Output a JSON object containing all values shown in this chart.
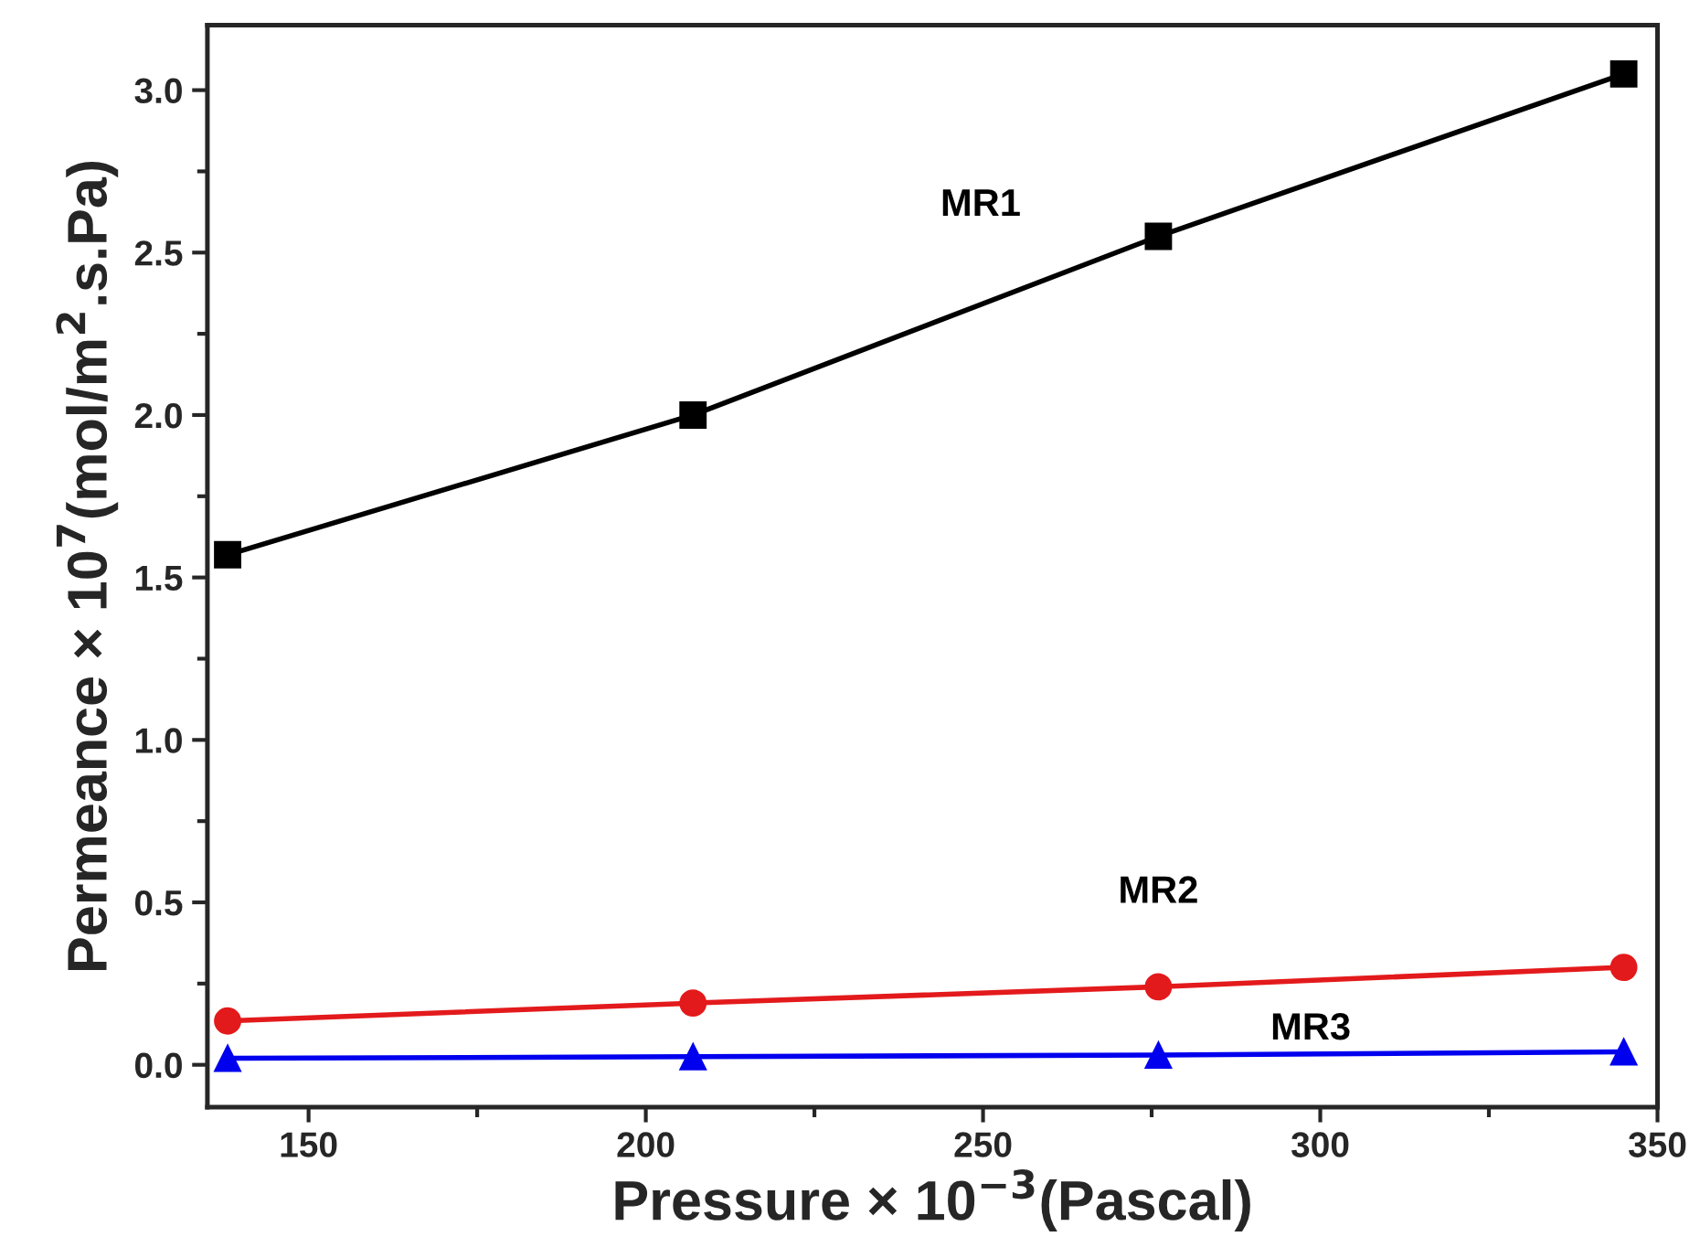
{
  "chart_data": {
    "type": "line",
    "xlabel": "Pressure × 10$^{−3}$(Pascal)",
    "ylabel": "Permeance × 10$^{7}$(mol/m$^{2}$.s.Pa)",
    "x": [
      138,
      207,
      276,
      345
    ],
    "series": [
      {
        "name": "MR1",
        "color": "#000000",
        "marker": "square",
        "values": [
          1.57,
          2.0,
          2.55,
          3.05
        ]
      },
      {
        "name": "MR2",
        "color": "#e31a1c",
        "marker": "circle",
        "values": [
          0.135,
          0.19,
          0.24,
          0.3
        ]
      },
      {
        "name": "MR3",
        "color": "#0000ee",
        "marker": "triangle",
        "values": [
          0.02,
          0.025,
          0.03,
          0.04
        ]
      }
    ],
    "xlim": [
      135,
      350
    ],
    "xticks": [
      150,
      200,
      250,
      300,
      350
    ],
    "ylim": [
      -0.13,
      3.2
    ],
    "yticks": [
      {
        "value": 0,
        "label": "0.0"
      },
      0.5,
      {
        "value": 1,
        "label": "1.0"
      },
      1.5,
      {
        "value": 2,
        "label": "2.0"
      },
      2.5,
      {
        "value": 3,
        "label": "3.0"
      }
    ],
    "grid": false,
    "legend": false,
    "line_style": "solid"
  }
}
